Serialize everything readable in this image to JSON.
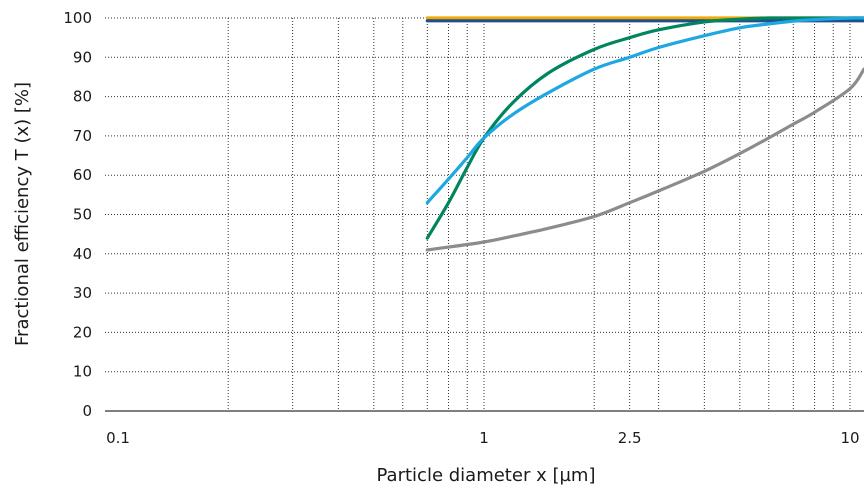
{
  "chart_data": {
    "type": "line",
    "xlabel": "Particle diameter x [µm]",
    "ylabel": "Fractional efficiency T (x) [%]",
    "x_scale": "log",
    "xlim": [
      0.06,
      12
    ],
    "ylim": [
      0,
      100
    ],
    "x_tick_labels": [
      {
        "value": 0.1,
        "label": "0.1"
      },
      {
        "value": 1,
        "label": "1"
      },
      {
        "value": 2.5,
        "label": "2.5"
      },
      {
        "value": 10,
        "label": "10"
      }
    ],
    "y_tick_labels": [
      "0",
      "10",
      "20",
      "30",
      "40",
      "50",
      "60",
      "70",
      "80",
      "90",
      "100"
    ],
    "grid": true,
    "series": [
      {
        "color": "#f2a900",
        "x": [
          0.7,
          12
        ],
        "y": [
          100,
          100
        ]
      },
      {
        "color": "#1d4f91",
        "x": [
          0.7,
          12
        ],
        "y": [
          99.3,
          99.3
        ]
      },
      {
        "color": "#00855f",
        "x": [
          0.7,
          0.8,
          0.9,
          1.0,
          1.2,
          1.5,
          2.0,
          2.5,
          3.0,
          4.0,
          5.0,
          6.0,
          7.0,
          8.0,
          10.0,
          12.0
        ],
        "y": [
          44,
          53,
          62,
          69.5,
          78.5,
          86,
          92,
          95,
          97,
          99,
          99.7,
          100,
          100,
          100,
          100,
          100
        ]
      },
      {
        "color": "#1ea7e1",
        "x": [
          0.7,
          0.8,
          0.9,
          1.0,
          1.2,
          1.5,
          2.0,
          2.5,
          3.0,
          4.0,
          5.0,
          6.0,
          7.0,
          8.0,
          10.0,
          12.0
        ],
        "y": [
          53,
          59,
          64.5,
          69.5,
          75.5,
          81,
          87,
          90,
          92.5,
          95.5,
          97.5,
          98.5,
          99.2,
          99.6,
          100,
          100
        ]
      },
      {
        "color": "#8c8c8c",
        "x": [
          0.7,
          0.8,
          1.0,
          1.2,
          1.5,
          2.0,
          2.5,
          3.0,
          4.0,
          5.0,
          6.0,
          7.0,
          8.0,
          10.0,
          12.0
        ],
        "y": [
          41,
          41.7,
          43,
          44.5,
          46.5,
          49.5,
          53,
          56,
          61,
          65.5,
          69.5,
          73,
          76,
          82,
          87
        ]
      }
    ]
  }
}
